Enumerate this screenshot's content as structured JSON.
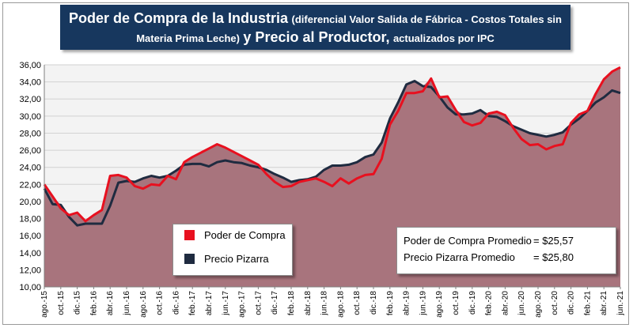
{
  "title": {
    "part1": "Poder de Compra de la Industria",
    "part2": "(diferencial Valor Salida de Fábrica - Costos Totales sin",
    "part3": "Materia Prima Leche)",
    "part4": "y Precio al Productor,",
    "part5": "actualizados por IPC"
  },
  "legend": {
    "poder": "Poder de Compra",
    "pizarra": "Precio Pizarra"
  },
  "averages": {
    "poder_label": "Poder de Compra Promedio",
    "poder_value": "= $25,57",
    "pizarra_label": "Precio Pizarra Promedio",
    "pizarra_value": "= $25,80"
  },
  "colors": {
    "poder": "#e8101f",
    "pizarra": "#1f2b40",
    "fill": "#a8747d",
    "plot_bg": "#f3f3f3",
    "title_bg": "#17375e"
  },
  "chart_data": {
    "type": "area",
    "ylim": [
      10,
      36
    ],
    "ytick_step": 2,
    "yticks": [
      "10,00",
      "12,00",
      "14,00",
      "16,00",
      "18,00",
      "20,00",
      "22,00",
      "24,00",
      "26,00",
      "28,00",
      "30,00",
      "32,00",
      "34,00",
      "36,00"
    ],
    "xtick_labels": [
      "ago.-15",
      "oct.-15",
      "dic.-15",
      "feb.-16",
      "abr.-16",
      "jun.-16",
      "ago.-16",
      "oct.-16",
      "dic.-16",
      "feb.-17",
      "abr.-17",
      "jun.-17",
      "ago.-17",
      "oct.-17",
      "dic.-17",
      "feb.-18",
      "abr.-18",
      "jun.-18",
      "ago.-18",
      "oct.-18",
      "dic.-18",
      "feb.-19",
      "abr.-19",
      "jun.-19",
      "ago.-19",
      "oct.-19",
      "dic.-19",
      "feb.-20",
      "abr.-20",
      "jun.-20",
      "ago.-20",
      "oct.-20",
      "dic.-20",
      "feb.-21",
      "abr.-21",
      "jun.-21"
    ],
    "series": [
      {
        "name": "Poder de Compra",
        "values": [
          22.0,
          20.6,
          19.2,
          18.4,
          18.7,
          17.7,
          18.4,
          19.0,
          23.0,
          23.1,
          22.8,
          21.8,
          21.5,
          22.0,
          21.9,
          23.0,
          22.6,
          24.6,
          25.2,
          25.7,
          26.2,
          26.7,
          26.3,
          25.8,
          25.3,
          24.8,
          24.3,
          23.2,
          22.3,
          21.7,
          21.8,
          22.3,
          22.5,
          22.7,
          22.3,
          21.8,
          22.7,
          22.1,
          22.7,
          23.1,
          23.2,
          25.0,
          29.0,
          30.6,
          32.7,
          32.7,
          32.9,
          34.4,
          32.2,
          32.3,
          30.7,
          29.3,
          28.9,
          29.2,
          30.3,
          30.5,
          30.1,
          28.6,
          27.3,
          26.6,
          26.7,
          26.1,
          26.5,
          26.7,
          29.2,
          30.2,
          30.6,
          32.6,
          34.3,
          35.2,
          35.7
        ]
      },
      {
        "name": "Precio Pizarra",
        "values": [
          21.5,
          19.7,
          19.6,
          18.2,
          17.2,
          17.4,
          17.4,
          17.4,
          19.5,
          22.2,
          22.4,
          22.3,
          22.7,
          23.0,
          22.8,
          23.0,
          23.6,
          24.3,
          24.4,
          24.4,
          24.1,
          24.6,
          24.8,
          24.6,
          24.5,
          24.2,
          24.0,
          23.7,
          23.2,
          22.8,
          22.3,
          22.5,
          22.6,
          22.9,
          23.7,
          24.2,
          24.2,
          24.3,
          24.6,
          25.2,
          25.5,
          26.9,
          29.7,
          31.6,
          33.7,
          34.1,
          33.5,
          33.4,
          32.3,
          31.0,
          30.2,
          30.2,
          30.3,
          30.7,
          30.0,
          29.9,
          29.4,
          28.8,
          28.4,
          28.0,
          27.8,
          27.6,
          27.8,
          28.1,
          29.0,
          29.7,
          30.6,
          31.6,
          32.2,
          33.0,
          32.7
        ]
      }
    ]
  }
}
